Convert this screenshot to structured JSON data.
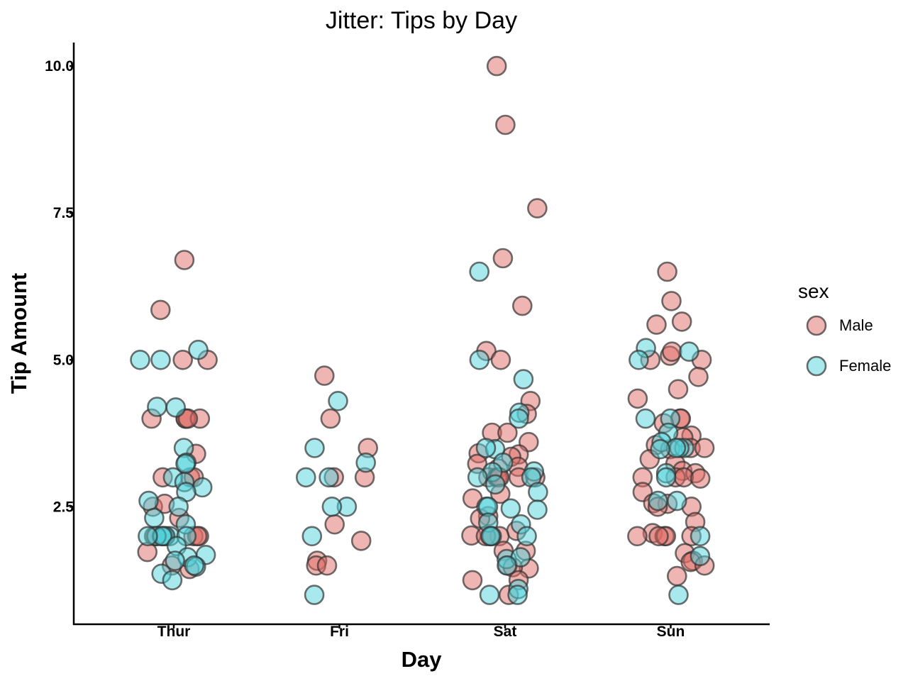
{
  "chart_data": {
    "type": "scatter",
    "title": "Jitter: Tips by Day",
    "xlabel": "Day",
    "ylabel": "Tip Amount",
    "categories": [
      "Thur",
      "Fri",
      "Sat",
      "Sun"
    ],
    "yticks": [
      2.5,
      5.0,
      7.5,
      10.0
    ],
    "ytick_labels": [
      "2.5",
      "5.0",
      "7.5",
      "10.0"
    ],
    "ylim": [
      0.5,
      10.4
    ],
    "grid": false,
    "legend": {
      "title": "sex",
      "placement": "right"
    },
    "series": [
      {
        "name": "Male",
        "color": "#e06c66",
        "points": [
          [
            "Thur",
            6.7
          ],
          [
            "Thur",
            5.85
          ],
          [
            "Thur",
            5.0
          ],
          [
            "Thur",
            5.0
          ],
          [
            "Thur",
            4.0
          ],
          [
            "Thur",
            4.0
          ],
          [
            "Thur",
            4.0
          ],
          [
            "Thur",
            4.0
          ],
          [
            "Thur",
            4.0
          ],
          [
            "Thur",
            3.4
          ],
          [
            "Thur",
            3.0
          ],
          [
            "Thur",
            3.0
          ],
          [
            "Thur",
            3.0
          ],
          [
            "Thur",
            2.5
          ],
          [
            "Thur",
            2.31
          ],
          [
            "Thur",
            2.0
          ],
          [
            "Thur",
            2.0
          ],
          [
            "Thur",
            2.0
          ],
          [
            "Thur",
            2.0
          ],
          [
            "Thur",
            2.0
          ],
          [
            "Thur",
            1.73
          ],
          [
            "Thur",
            1.5
          ],
          [
            "Thur",
            1.44
          ],
          [
            "Thur",
            2.55
          ],
          [
            "Fri",
            4.73
          ],
          [
            "Fri",
            4.0
          ],
          [
            "Fri",
            3.5
          ],
          [
            "Fri",
            3.0
          ],
          [
            "Fri",
            3.0
          ],
          [
            "Fri",
            2.2
          ],
          [
            "Fri",
            1.92
          ],
          [
            "Fri",
            1.58
          ],
          [
            "Fri",
            1.5
          ],
          [
            "Fri",
            1.5
          ],
          [
            "Sat",
            10.0
          ],
          [
            "Sat",
            9.0
          ],
          [
            "Sat",
            7.58
          ],
          [
            "Sat",
            6.73
          ],
          [
            "Sat",
            5.92
          ],
          [
            "Sat",
            5.15
          ],
          [
            "Sat",
            5.0
          ],
          [
            "Sat",
            4.3
          ],
          [
            "Sat",
            4.08
          ],
          [
            "Sat",
            3.76
          ],
          [
            "Sat",
            3.76
          ],
          [
            "Sat",
            3.6
          ],
          [
            "Sat",
            3.39
          ],
          [
            "Sat",
            3.41
          ],
          [
            "Sat",
            3.35
          ],
          [
            "Sat",
            3.23
          ],
          [
            "Sat",
            3.18
          ],
          [
            "Sat",
            3.15
          ],
          [
            "Sat",
            3.0
          ],
          [
            "Sat",
            3.0
          ],
          [
            "Sat",
            3.0
          ],
          [
            "Sat",
            3.0
          ],
          [
            "Sat",
            3.0
          ],
          [
            "Sat",
            3.0
          ],
          [
            "Sat",
            2.72
          ],
          [
            "Sat",
            2.64
          ],
          [
            "Sat",
            2.34
          ],
          [
            "Sat",
            2.3
          ],
          [
            "Sat",
            2.09
          ],
          [
            "Sat",
            2.01
          ],
          [
            "Sat",
            2.0
          ],
          [
            "Sat",
            2.0
          ],
          [
            "Sat",
            2.0
          ],
          [
            "Sat",
            2.0
          ],
          [
            "Sat",
            1.75
          ],
          [
            "Sat",
            1.75
          ],
          [
            "Sat",
            1.5
          ],
          [
            "Sat",
            1.45
          ],
          [
            "Sat",
            1.47
          ],
          [
            "Sat",
            1.25
          ],
          [
            "Sat",
            1.25
          ],
          [
            "Sat",
            1.0
          ],
          [
            "Sun",
            6.5
          ],
          [
            "Sun",
            6.0
          ],
          [
            "Sun",
            5.65
          ],
          [
            "Sun",
            5.6
          ],
          [
            "Sun",
            5.07
          ],
          [
            "Sun",
            5.0
          ],
          [
            "Sun",
            5.0
          ],
          [
            "Sun",
            5.14
          ],
          [
            "Sun",
            4.71
          ],
          [
            "Sun",
            4.5
          ],
          [
            "Sun",
            4.34
          ],
          [
            "Sun",
            4.0
          ],
          [
            "Sun",
            4.0
          ],
          [
            "Sun",
            3.92
          ],
          [
            "Sun",
            3.71
          ],
          [
            "Sun",
            3.68
          ],
          [
            "Sun",
            3.55
          ],
          [
            "Sun",
            3.5
          ],
          [
            "Sun",
            3.5
          ],
          [
            "Sun",
            3.48
          ],
          [
            "Sun",
            3.31
          ],
          [
            "Sun",
            3.23
          ],
          [
            "Sun",
            3.11
          ],
          [
            "Sun",
            3.07
          ],
          [
            "Sun",
            3.0
          ],
          [
            "Sun",
            3.0
          ],
          [
            "Sun",
            3.0
          ],
          [
            "Sun",
            2.98
          ],
          [
            "Sun",
            2.75
          ],
          [
            "Sun",
            2.56
          ],
          [
            "Sun",
            2.55
          ],
          [
            "Sun",
            2.5
          ],
          [
            "Sun",
            2.5
          ],
          [
            "Sun",
            2.24
          ],
          [
            "Sun",
            2.05
          ],
          [
            "Sun",
            2.0
          ],
          [
            "Sun",
            2.0
          ],
          [
            "Sun",
            2.0
          ],
          [
            "Sun",
            2.0
          ],
          [
            "Sun",
            2.0
          ],
          [
            "Sun",
            1.71
          ],
          [
            "Sun",
            1.58
          ],
          [
            "Sun",
            1.56
          ],
          [
            "Sun",
            1.5
          ],
          [
            "Sun",
            1.32
          ]
        ]
      },
      {
        "name": "Female",
        "color": "#4fd3dc",
        "points": [
          [
            "Thur",
            5.17
          ],
          [
            "Thur",
            5.0
          ],
          [
            "Thur",
            5.0
          ],
          [
            "Thur",
            4.2
          ],
          [
            "Thur",
            4.19
          ],
          [
            "Thur",
            3.5
          ],
          [
            "Thur",
            3.25
          ],
          [
            "Thur",
            3.23
          ],
          [
            "Thur",
            3.0
          ],
          [
            "Thur",
            2.92
          ],
          [
            "Thur",
            2.83
          ],
          [
            "Thur",
            2.75
          ],
          [
            "Thur",
            2.6
          ],
          [
            "Thur",
            2.5
          ],
          [
            "Thur",
            2.31
          ],
          [
            "Thur",
            2.2
          ],
          [
            "Thur",
            2.0
          ],
          [
            "Thur",
            2.0
          ],
          [
            "Thur",
            2.0
          ],
          [
            "Thur",
            2.0
          ],
          [
            "Thur",
            2.0
          ],
          [
            "Thur",
            2.0
          ],
          [
            "Thur",
            2.0
          ],
          [
            "Thur",
            2.0
          ],
          [
            "Thur",
            1.83
          ],
          [
            "Thur",
            1.68
          ],
          [
            "Thur",
            1.64
          ],
          [
            "Thur",
            1.58
          ],
          [
            "Thur",
            1.48
          ],
          [
            "Thur",
            1.5
          ],
          [
            "Thur",
            1.36
          ],
          [
            "Thur",
            1.25
          ],
          [
            "Fri",
            4.3
          ],
          [
            "Fri",
            3.5
          ],
          [
            "Fri",
            3.25
          ],
          [
            "Fri",
            3.0
          ],
          [
            "Fri",
            3.0
          ],
          [
            "Fri",
            2.5
          ],
          [
            "Fri",
            2.5
          ],
          [
            "Fri",
            2.0
          ],
          [
            "Fri",
            1.0
          ],
          [
            "Sat",
            6.5
          ],
          [
            "Sat",
            5.0
          ],
          [
            "Sat",
            4.67
          ],
          [
            "Sat",
            4.1
          ],
          [
            "Sat",
            4.0
          ],
          [
            "Sat",
            3.48
          ],
          [
            "Sat",
            3.5
          ],
          [
            "Sat",
            3.25
          ],
          [
            "Sat",
            3.1
          ],
          [
            "Sat",
            3.09
          ],
          [
            "Sat",
            3.0
          ],
          [
            "Sat",
            3.0
          ],
          [
            "Sat",
            2.88
          ],
          [
            "Sat",
            2.75
          ],
          [
            "Sat",
            2.5
          ],
          [
            "Sat",
            2.5
          ],
          [
            "Sat",
            2.47
          ],
          [
            "Sat",
            2.45
          ],
          [
            "Sat",
            2.23
          ],
          [
            "Sat",
            2.2
          ],
          [
            "Sat",
            2.0
          ],
          [
            "Sat",
            2.0
          ],
          [
            "Sat",
            2.0
          ],
          [
            "Sat",
            1.61
          ],
          [
            "Sat",
            1.64
          ],
          [
            "Sat",
            1.5
          ],
          [
            "Sat",
            1.1
          ],
          [
            "Sat",
            1.0
          ],
          [
            "Sat",
            1.0
          ],
          [
            "Sun",
            5.2
          ],
          [
            "Sun",
            5.14
          ],
          [
            "Sun",
            5.0
          ],
          [
            "Sun",
            4.0
          ],
          [
            "Sun",
            4.0
          ],
          [
            "Sun",
            3.76
          ],
          [
            "Sun",
            3.6
          ],
          [
            "Sun",
            3.5
          ],
          [
            "Sun",
            3.5
          ],
          [
            "Sun",
            3.5
          ],
          [
            "Sun",
            3.48
          ],
          [
            "Sun",
            3.07
          ],
          [
            "Sun",
            3.0
          ],
          [
            "Sun",
            2.6
          ],
          [
            "Sun",
            2.6
          ],
          [
            "Sun",
            2.0
          ],
          [
            "Sun",
            1.66
          ],
          [
            "Sun",
            1.0
          ]
        ]
      }
    ]
  }
}
